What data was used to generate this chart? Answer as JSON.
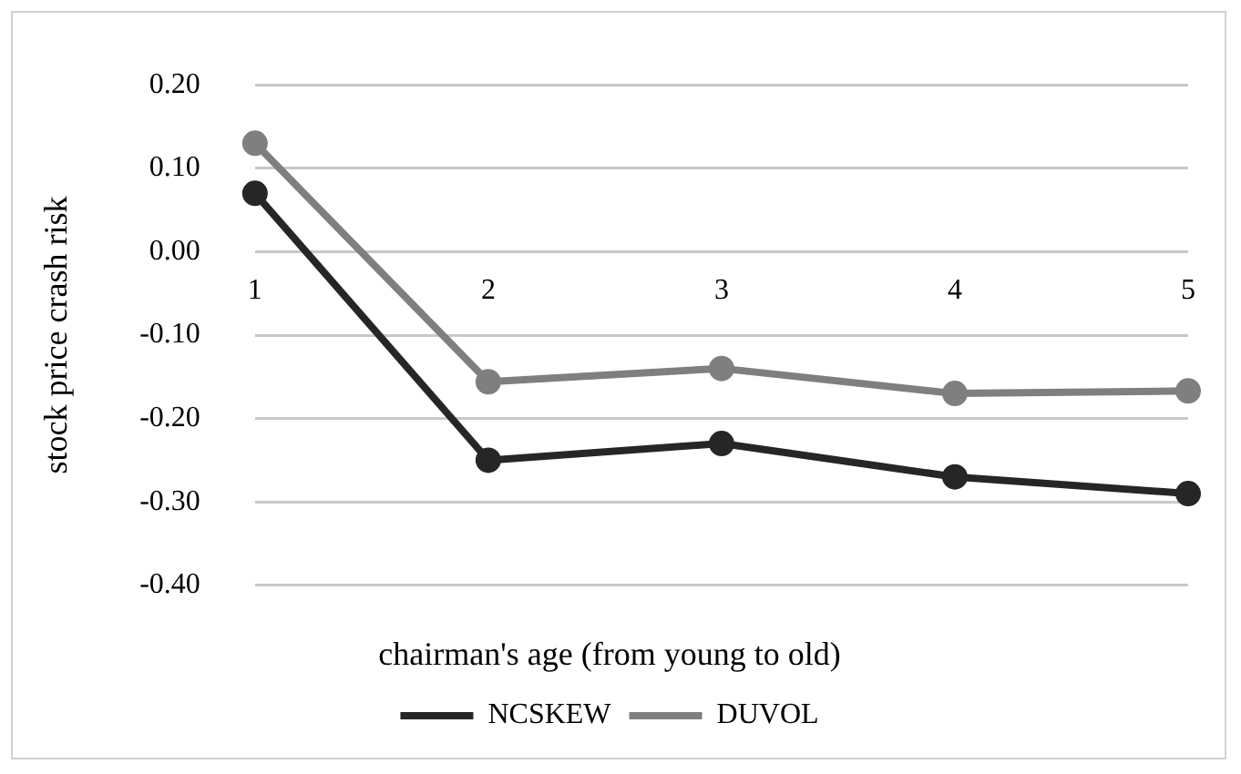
{
  "chart_data": {
    "type": "line",
    "xlabel": "chairman's age (from young to old)",
    "ylabel": "stock price crash risk",
    "categories": [
      "1",
      "2",
      "3",
      "4",
      "5"
    ],
    "series": [
      {
        "name": "NCSKEW",
        "color": "#262626",
        "values": [
          0.07,
          -0.25,
          -0.23,
          -0.27,
          -0.29
        ]
      },
      {
        "name": "DUVOL",
        "color": "#7f7f7f",
        "values": [
          0.13,
          -0.156,
          -0.14,
          -0.17,
          -0.167
        ]
      }
    ],
    "ylim": [
      -0.4,
      0.2
    ],
    "yticks": [
      {
        "value": -0.4,
        "label": "-0.40"
      },
      {
        "value": -0.3,
        "label": "-0.30"
      },
      {
        "value": -0.2,
        "label": "-0.20"
      },
      {
        "value": -0.1,
        "label": "-0.10"
      },
      {
        "value": 0,
        "label": "0.00"
      },
      {
        "value": 0.1,
        "label": "0.10"
      },
      {
        "value": 0.2,
        "label": "0.20"
      }
    ],
    "grid": "y",
    "legend": "bottom",
    "marker": "circle",
    "line_style": "solid"
  }
}
